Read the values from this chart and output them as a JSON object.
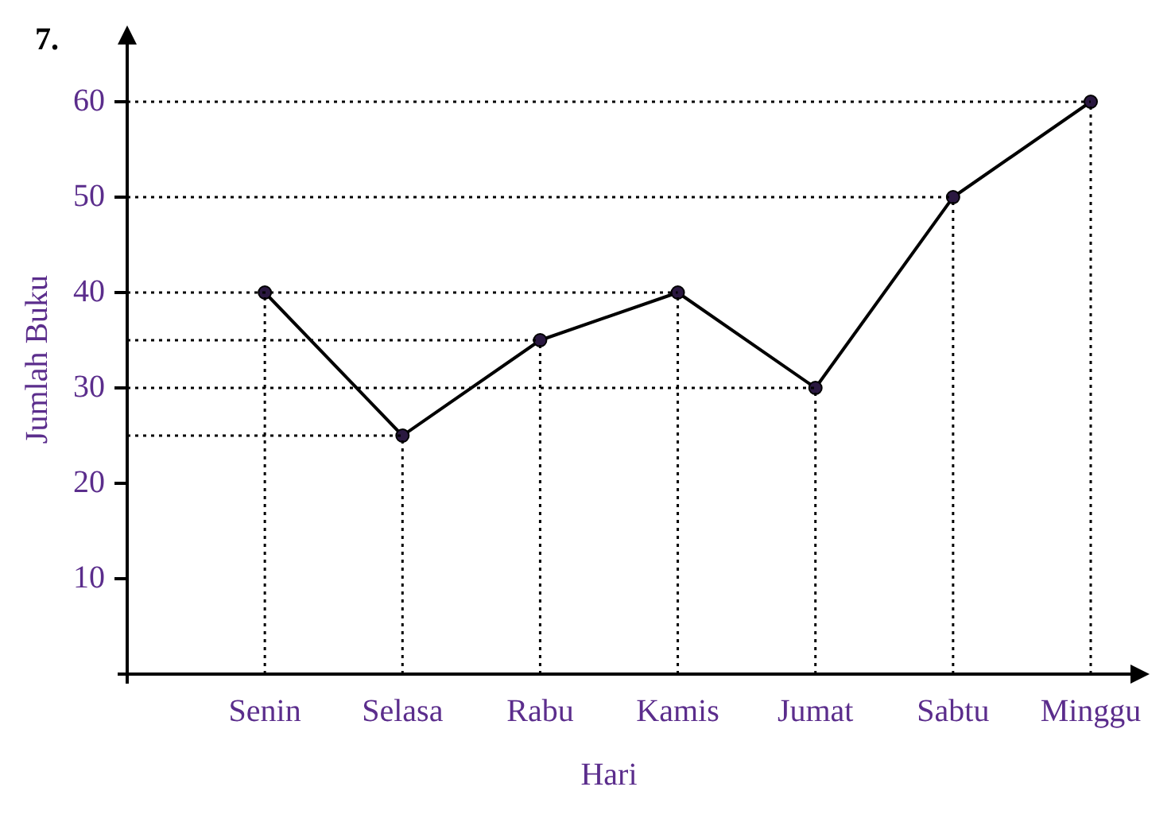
{
  "chart_data": {
    "type": "line",
    "xlabel": "Hari",
    "ylabel": "Jumlah Buku",
    "annotations": [
      "7."
    ],
    "categories": [
      null,
      "Senin",
      "Selasa",
      "Rabu",
      "Kamis",
      "Jumat",
      "Sabtu",
      "Minggu"
    ],
    "series": [
      {
        "color": "#000000",
        "values": [
          null,
          40,
          25,
          35,
          40,
          30,
          50,
          60
        ]
      }
    ],
    "ref_lines": [
      {
        "axis": "y",
        "value": 60,
        "color": "#000000",
        "line_style": "dotted"
      },
      {
        "axis": "y",
        "value": 50,
        "color": "#000000",
        "line_style": "dotted"
      },
      {
        "axis": "y",
        "value": 40,
        "color": "#000000",
        "line_style": "dotted"
      },
      {
        "axis": "y",
        "value": 35,
        "color": "#000000",
        "line_style": "dotted"
      },
      {
        "axis": "y",
        "value": 30,
        "color": "#000000",
        "line_style": "dotted"
      },
      {
        "axis": "y",
        "value": 25,
        "color": "#000000",
        "line_style": "dotted"
      },
      {
        "axis": "x",
        "value": "Senin",
        "color": "#000000",
        "line_style": "dotted"
      },
      {
        "axis": "x",
        "value": "Selasa",
        "color": "#000000",
        "line_style": "dotted"
      },
      {
        "axis": "x",
        "value": "Rabu",
        "color": "#000000",
        "line_style": "dotted"
      },
      {
        "axis": "x",
        "value": "Kamis",
        "color": "#000000",
        "line_style": "dotted"
      },
      {
        "axis": "x",
        "value": "Jumat",
        "color": "#000000",
        "line_style": "dotted"
      },
      {
        "axis": "x",
        "value": "Sabtu",
        "color": "#000000",
        "line_style": "dotted"
      },
      {
        "axis": "x",
        "value": "Minggu",
        "color": "#000000",
        "line_style": "dotted"
      }
    ],
    "ylim": [
      0,
      66
    ],
    "yticks": [
      10,
      20,
      30,
      40,
      50,
      60
    ],
    "grid": false,
    "legend": false,
    "marker": "circle",
    "line_style": "solid"
  }
}
